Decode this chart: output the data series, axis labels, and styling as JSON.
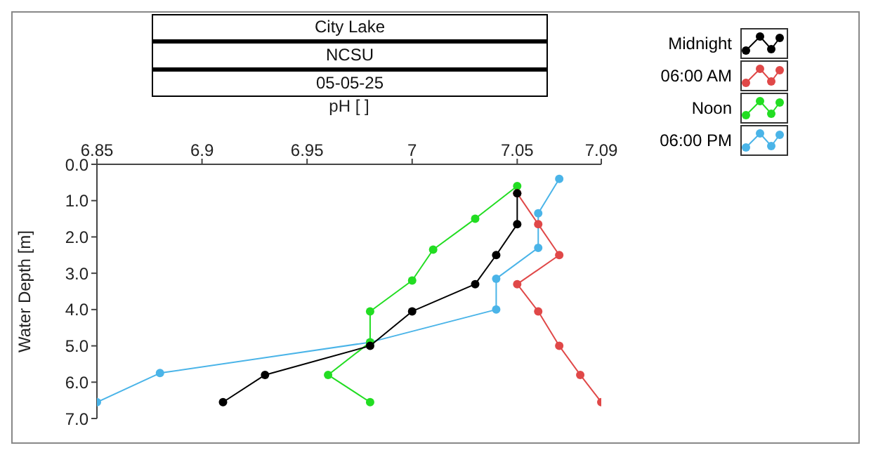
{
  "chart_data": {
    "type": "line",
    "title": "City Lake",
    "subtitle": "NCSU",
    "annotations": [
      "05-05-25"
    ],
    "xlabel": "pH [ ]",
    "ylabel": "Water Depth [m]",
    "xlim": [
      6.85,
      7.09
    ],
    "xticks": [
      6.85,
      6.9,
      6.95,
      7,
      7.05,
      7.09
    ],
    "ylim": [
      7,
      0
    ],
    "yticks": [
      {
        "value": 0,
        "label": "0.0"
      },
      {
        "value": 1,
        "label": "1.0"
      },
      {
        "value": 2,
        "label": "2.0"
      },
      {
        "value": 3,
        "label": "3.0"
      },
      {
        "value": 4,
        "label": "4.0"
      },
      {
        "value": 5,
        "label": "5.0"
      },
      {
        "value": 6,
        "label": "6.0"
      },
      {
        "value": 7,
        "label": "7.0"
      }
    ],
    "grid": false,
    "legend": "top right",
    "marker": "circle",
    "series": [
      {
        "name": "Midnight",
        "color": "#000000",
        "x": [
          7.05,
          7.05,
          7.04,
          7.03,
          7.0,
          6.98,
          6.93,
          6.91
        ],
        "values": [
          0.8,
          1.65,
          2.5,
          3.3,
          4.05,
          5.0,
          5.8,
          6.55
        ]
      },
      {
        "name": "06:00 AM",
        "color": "#e04848",
        "x": [
          7.05,
          7.06,
          7.07,
          7.05,
          7.06,
          7.07,
          7.08,
          7.09
        ],
        "values": [
          0.8,
          1.65,
          2.5,
          3.3,
          4.05,
          5.0,
          5.8,
          6.55
        ]
      },
      {
        "name": "Noon",
        "color": "#22dd22",
        "x": [
          7.05,
          7.03,
          7.01,
          7.0,
          6.98,
          6.98,
          6.96,
          6.98
        ],
        "values": [
          0.6,
          1.5,
          2.35,
          3.2,
          4.05,
          4.9,
          5.8,
          6.55
        ]
      },
      {
        "name": "06:00 PM",
        "color": "#4ab4e8",
        "x": [
          7.07,
          7.06,
          7.06,
          7.04,
          7.04,
          6.98,
          6.88,
          6.85
        ],
        "values": [
          0.4,
          1.35,
          2.3,
          3.15,
          4.0,
          4.9,
          5.75,
          6.55
        ]
      }
    ]
  }
}
